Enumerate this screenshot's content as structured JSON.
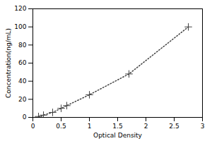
{
  "chart_data": {
    "type": "line",
    "x": [
      0.1,
      0.188,
      0.35,
      0.5,
      0.6,
      1.0,
      1.7,
      2.75
    ],
    "values": [
      1.0,
      2.5,
      5.5,
      10.0,
      13.0,
      25.0,
      48.0,
      100.0
    ],
    "xlabel": "Optical Density",
    "ylabel": "Concentration(ng/mL)",
    "xlim": [
      0,
      3
    ],
    "ylim": [
      0,
      120
    ],
    "xticks": [
      0,
      0.5,
      1,
      1.5,
      2,
      2.5,
      3
    ],
    "yticks": [
      0,
      20,
      40,
      60,
      80,
      100,
      120
    ],
    "color": "#444444",
    "marker": "plus",
    "line_style": "dotted",
    "grid": false
  }
}
